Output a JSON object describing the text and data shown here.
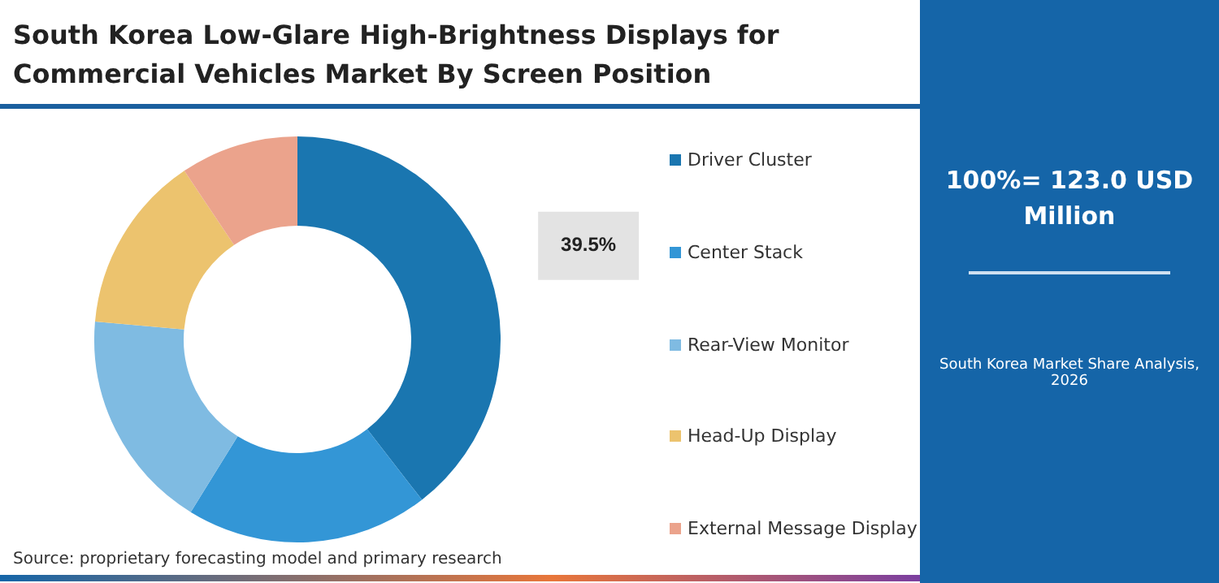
{
  "chart_data": {
    "type": "donut",
    "title": "South Korea Low-Glare High-Brightness Displays for Commercial Vehicles Market By Screen Position",
    "subtitle": "South Korea Market Share Analysis, 2026",
    "categories": [
      "Driver Cluster",
      "Center Stack",
      "Rear-View Monitor",
      "Head-Up Display",
      "External Message Display"
    ],
    "values": [
      39.5,
      19.3,
      17.6,
      14.2,
      9.4
    ],
    "colors": [
      "#1a76b0",
      "#3396d6",
      "#7fbbe2",
      "#ecc36e",
      "#eba38c"
    ],
    "value_labels": [
      "39.5%",
      null,
      null,
      null,
      null
    ],
    "legend": "right",
    "annotations": [
      "100%= 123.0 USD Million",
      "Source: proprietary forecasting model and primary research"
    ]
  }
}
